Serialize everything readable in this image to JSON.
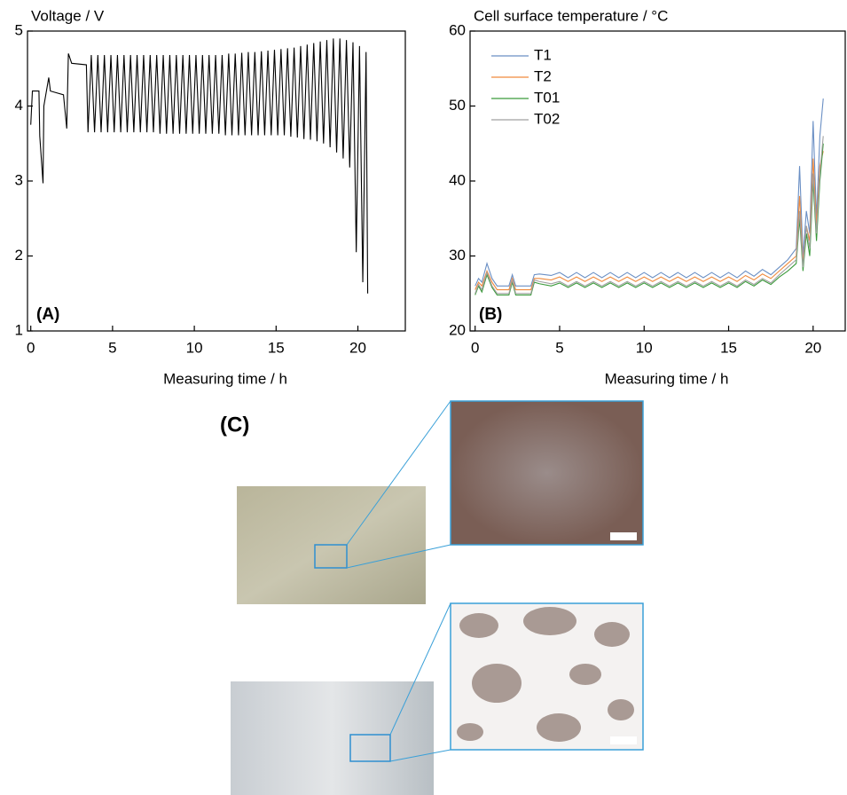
{
  "chart_data": [
    {
      "type": "line",
      "title": "Voltage / V",
      "x_label": "Measuring time / h",
      "annotation": "(A)",
      "xlim": [
        -0.2,
        22.9
      ],
      "ylim": [
        1,
        5
      ],
      "xticks": [
        0,
        5,
        10,
        15,
        20
      ],
      "yticks": [
        1,
        2,
        3,
        4,
        5
      ],
      "x": [
        0,
        0.1,
        0.5,
        0.55,
        0.75,
        0.8,
        1.1,
        1.2,
        2.0,
        2.2,
        2.3,
        2.5,
        3.4,
        3.5,
        3.7,
        3.9,
        4.1,
        4.3,
        4.5,
        4.7,
        4.9,
        5.1,
        5.3,
        5.5,
        5.7,
        5.9,
        6.1,
        6.3,
        6.5,
        6.7,
        6.9,
        7.1,
        7.3,
        7.5,
        7.7,
        7.9,
        8.1,
        8.3,
        8.5,
        8.7,
        8.9,
        9.1,
        9.3,
        9.5,
        9.7,
        9.9,
        10.1,
        10.3,
        10.5,
        10.7,
        10.9,
        11.1,
        11.3,
        11.5,
        11.7,
        11.9,
        12.1,
        12.3,
        12.5,
        12.7,
        12.9,
        13.1,
        13.3,
        13.5,
        13.7,
        13.9,
        14.1,
        14.3,
        14.5,
        14.7,
        14.9,
        15.1,
        15.3,
        15.5,
        15.7,
        15.9,
        16.1,
        16.3,
        16.5,
        16.7,
        16.9,
        17.1,
        17.3,
        17.5,
        17.7,
        17.9,
        18.1,
        18.3,
        18.5,
        18.7,
        18.9,
        19.1,
        19.3,
        19.5,
        19.7,
        19.9,
        20.1,
        20.3,
        20.5,
        20.6
      ],
      "series": [
        {
          "color": "#000000",
          "values": [
            3.75,
            4.2,
            4.2,
            3.6,
            2.97,
            4.0,
            4.38,
            4.2,
            4.15,
            3.7,
            4.7,
            4.57,
            4.55,
            3.65,
            4.68,
            3.65,
            4.68,
            3.65,
            4.68,
            3.65,
            4.68,
            3.65,
            4.68,
            3.65,
            4.68,
            3.65,
            4.68,
            3.65,
            4.68,
            3.65,
            4.68,
            3.65,
            4.68,
            3.65,
            4.68,
            3.63,
            4.68,
            3.63,
            4.68,
            3.63,
            4.68,
            3.63,
            4.68,
            3.63,
            4.68,
            3.63,
            4.68,
            3.63,
            4.68,
            3.63,
            4.68,
            3.63,
            4.68,
            3.63,
            4.68,
            3.61,
            4.7,
            3.61,
            4.7,
            3.61,
            4.71,
            3.61,
            4.72,
            3.61,
            4.72,
            3.61,
            4.73,
            3.61,
            4.74,
            3.61,
            4.75,
            3.61,
            4.76,
            3.61,
            4.77,
            3.59,
            4.78,
            3.58,
            4.8,
            3.56,
            4.82,
            3.55,
            4.84,
            3.53,
            4.86,
            3.5,
            4.88,
            3.45,
            4.9,
            3.38,
            4.9,
            3.3,
            4.88,
            3.18,
            4.85,
            2.05,
            4.8,
            1.65,
            4.72,
            1.5
          ]
        }
      ]
    },
    {
      "type": "line",
      "title": "Cell surface temperature / °C",
      "x_label": "Measuring time / h",
      "annotation": "(B)",
      "xlim": [
        -0.3,
        21.9
      ],
      "ylim": [
        20,
        60
      ],
      "xticks": [
        0,
        5,
        10,
        15,
        20
      ],
      "yticks": [
        20,
        30,
        40,
        50,
        60
      ],
      "legend": "upper left",
      "x": [
        0,
        0.2,
        0.4,
        0.7,
        1.0,
        1.3,
        2.0,
        2.2,
        2.4,
        3.3,
        3.5,
        3.8,
        4.5,
        5,
        5.5,
        6,
        6.5,
        7,
        7.5,
        8,
        8.5,
        9,
        9.5,
        10,
        10.5,
        11,
        11.5,
        12,
        12.5,
        13,
        13.5,
        14,
        14.5,
        15,
        15.5,
        16,
        16.5,
        17,
        17.5,
        18,
        18.5,
        19,
        19.2,
        19.4,
        19.6,
        19.8,
        20,
        20.2,
        20.4,
        20.6
      ],
      "series": [
        {
          "name": "T1",
          "color": "#6a8fc4",
          "values": [
            26,
            27,
            26.5,
            29,
            27,
            26,
            26,
            27.5,
            26,
            26,
            27.5,
            27.6,
            27.4,
            27.8,
            27.1,
            27.8,
            27.1,
            27.8,
            27.1,
            27.8,
            27.1,
            27.8,
            27.1,
            27.8,
            27.1,
            27.8,
            27.1,
            27.8,
            27.1,
            27.8,
            27.1,
            27.8,
            27.1,
            27.8,
            27.1,
            28.0,
            27.3,
            28.2,
            27.5,
            28.5,
            29.5,
            31,
            42,
            30,
            36,
            33,
            48,
            35,
            46,
            51
          ]
        },
        {
          "name": "T2",
          "color": "#f08a3c",
          "values": [
            25.5,
            26.5,
            26,
            28,
            26.5,
            25.5,
            25.5,
            27,
            25.5,
            25.5,
            27,
            27,
            26.8,
            27.2,
            26.6,
            27.2,
            26.6,
            27.2,
            26.6,
            27.2,
            26.6,
            27.2,
            26.6,
            27.2,
            26.6,
            27.2,
            26.6,
            27.2,
            26.6,
            27.2,
            26.6,
            27.2,
            26.6,
            27.2,
            26.6,
            27.4,
            26.8,
            27.6,
            27,
            28,
            29,
            30,
            38,
            29,
            34,
            32,
            43,
            34,
            42,
            44
          ]
        },
        {
          "name": "T01",
          "color": "#3a9a3a",
          "values": [
            24.8,
            26,
            25.2,
            27.5,
            25.8,
            24.8,
            24.8,
            26.5,
            24.8,
            24.8,
            26.5,
            26.3,
            26,
            26.4,
            25.8,
            26.4,
            25.8,
            26.4,
            25.8,
            26.4,
            25.8,
            26.4,
            25.8,
            26.4,
            25.8,
            26.4,
            25.8,
            26.4,
            25.8,
            26.4,
            25.8,
            26.4,
            25.8,
            26.4,
            25.8,
            26.6,
            26,
            26.8,
            26.2,
            27.2,
            28,
            29,
            35,
            28,
            33,
            30,
            40,
            32,
            40,
            45
          ]
        },
        {
          "name": "T02",
          "color": "#a0a0a0",
          "values": [
            25,
            26.2,
            25.5,
            27.8,
            26,
            25,
            25,
            26.8,
            25,
            25,
            26.8,
            26.6,
            26.3,
            26.6,
            26,
            26.6,
            26,
            26.6,
            26,
            26.6,
            26,
            26.6,
            26,
            26.6,
            26,
            26.6,
            26,
            26.6,
            26,
            26.6,
            26,
            26.6,
            26,
            26.6,
            26,
            26.8,
            26.2,
            27,
            26.4,
            27.5,
            28.5,
            29.5,
            36,
            28.5,
            34,
            31,
            41,
            33,
            41,
            46
          ]
        }
      ]
    }
  ],
  "panel_c": {
    "label": "(C)"
  }
}
